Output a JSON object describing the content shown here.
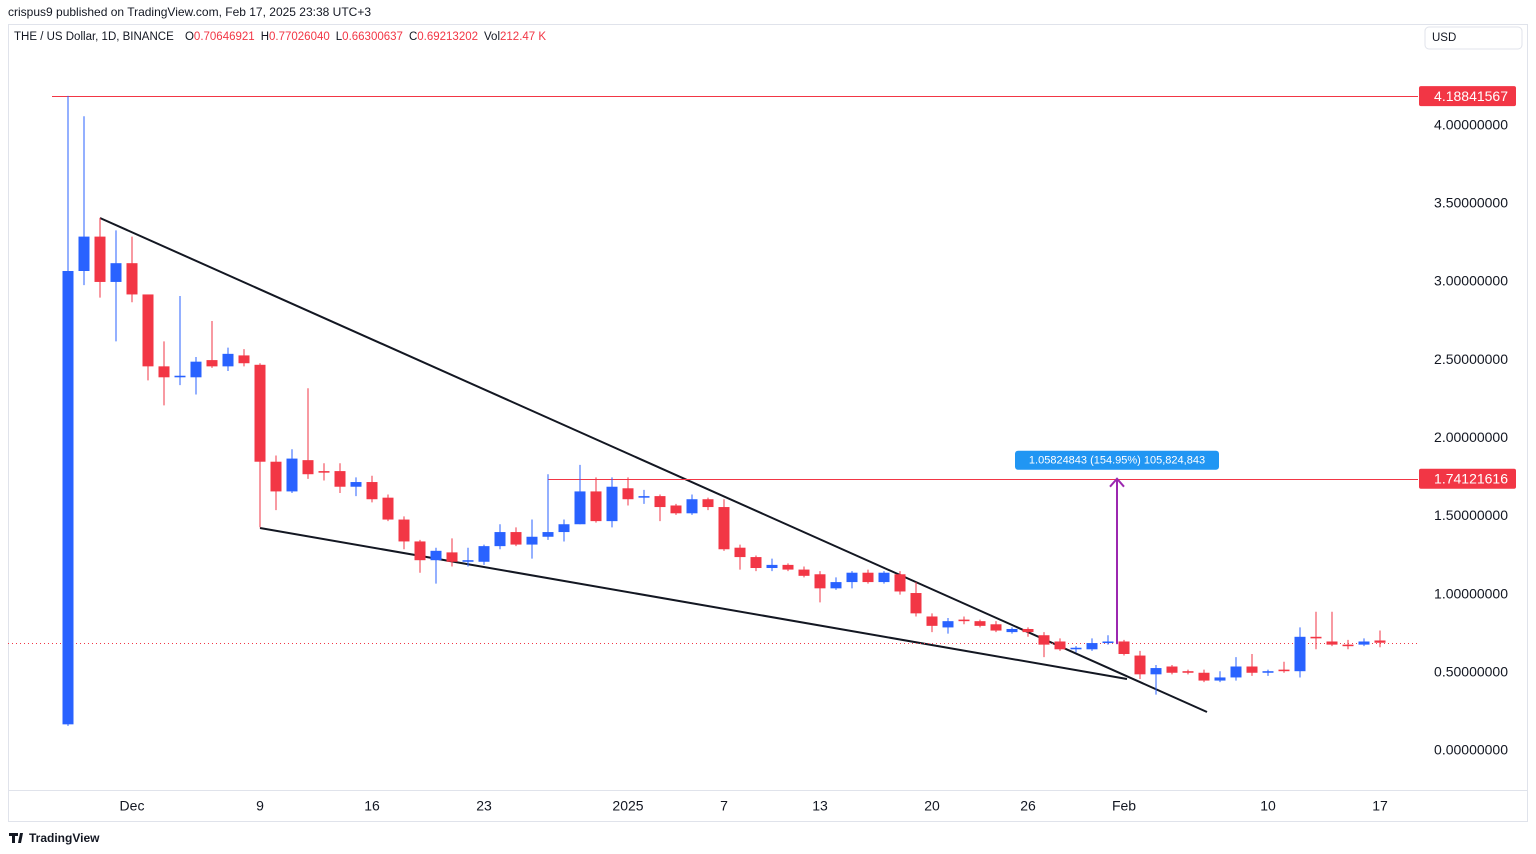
{
  "watermark": "crispus9 published on TradingView.com, Feb 17, 2025 23:38 UTC+3",
  "currency": "USD",
  "footer": "TradingView",
  "legend": {
    "symbol": "THE / US Dollar, 1D, BINANCE",
    "items": [
      {
        "key": "O",
        "text": "0.70646921"
      },
      {
        "key": "H",
        "text": "0.77026040"
      },
      {
        "key": "L",
        "text": "0.66300637"
      },
      {
        "key": "C",
        "text": "0.69213202"
      },
      {
        "key": "Vol",
        "text": "212.47 K"
      }
    ]
  },
  "chart_data": {
    "type": "candlestick",
    "up_color": "#2962ff",
    "down_color": "#f23645",
    "categories": [
      null,
      null,
      null,
      null,
      "Dec",
      null,
      null,
      null,
      null,
      null,
      null,
      null,
      "9",
      null,
      null,
      null,
      null,
      null,
      null,
      "16",
      null,
      null,
      null,
      null,
      null,
      null,
      "23",
      null,
      null,
      null,
      null,
      null,
      null,
      null,
      null,
      "2025",
      null,
      null,
      null,
      null,
      null,
      "7",
      null,
      null,
      null,
      null,
      null,
      "13",
      null,
      null,
      null,
      null,
      null,
      null,
      "20",
      null,
      null,
      null,
      null,
      null,
      "26",
      null,
      null,
      null,
      null,
      null,
      "Feb",
      null,
      null,
      null,
      null,
      null,
      null,
      null,
      null,
      "10",
      null,
      null,
      null,
      null,
      null,
      null,
      "17"
    ],
    "open": [
      0.17,
      3.07,
      3.29,
      3.0,
      3.12,
      2.92,
      2.46,
      2.39,
      2.39,
      2.5,
      2.46,
      2.53,
      2.47,
      1.85,
      1.66,
      1.86,
      1.79,
      1.79,
      1.69,
      1.72,
      1.62,
      1.48,
      1.34,
      1.22,
      1.27,
      1.21,
      1.21,
      1.31,
      1.4,
      1.32,
      1.37,
      1.4,
      1.45,
      1.66,
      1.47,
      1.68,
      1.62,
      1.63,
      1.57,
      1.52,
      1.61,
      1.56,
      1.3,
      1.24,
      1.17,
      1.19,
      1.16,
      1.13,
      1.04,
      1.08,
      1.14,
      1.08,
      1.13,
      1.01,
      0.86,
      0.79,
      0.84,
      0.83,
      0.81,
      0.76,
      0.78,
      0.74,
      0.7,
      0.65,
      0.65,
      0.69,
      0.7,
      0.61,
      0.49,
      0.54,
      0.51,
      0.5,
      0.45,
      0.47,
      0.54,
      0.5,
      0.52,
      0.51,
      0.73,
      0.7,
      0.68,
      0.68,
      0.70646921
    ],
    "high": [
      4.19,
      4.06,
      3.41,
      3.33,
      3.29,
      2.92,
      2.62,
      2.91,
      2.52,
      2.75,
      2.58,
      2.57,
      2.48,
      1.89,
      1.93,
      2.32,
      1.84,
      1.84,
      1.75,
      1.76,
      1.64,
      1.5,
      1.35,
      1.3,
      1.36,
      1.3,
      1.32,
      1.45,
      1.43,
      1.48,
      1.77,
      1.48,
      1.83,
      1.75,
      1.75,
      1.75,
      1.67,
      1.64,
      1.58,
      1.64,
      1.62,
      1.61,
      1.32,
      1.25,
      1.23,
      1.2,
      1.18,
      1.15,
      1.11,
      1.15,
      1.16,
      1.15,
      1.15,
      1.08,
      0.88,
      0.85,
      0.86,
      0.84,
      0.83,
      0.79,
      0.79,
      0.76,
      0.72,
      0.67,
      0.72,
      0.74,
      0.71,
      0.64,
      0.55,
      0.55,
      0.52,
      0.52,
      0.51,
      0.6,
      0.62,
      0.52,
      0.57,
      0.79,
      0.89,
      0.89,
      0.71,
      0.72,
      0.7702604
    ],
    "low": [
      0.16,
      2.98,
      2.9,
      2.62,
      2.87,
      2.37,
      2.21,
      2.34,
      2.28,
      2.45,
      2.43,
      2.46,
      1.43,
      1.54,
      1.65,
      1.74,
      1.73,
      1.65,
      1.63,
      1.59,
      1.47,
      1.29,
      1.14,
      1.07,
      1.18,
      1.18,
      1.19,
      1.29,
      1.31,
      1.23,
      1.35,
      1.34,
      1.45,
      1.46,
      1.43,
      1.57,
      1.58,
      1.47,
      1.51,
      1.51,
      1.54,
      1.28,
      1.16,
      1.15,
      1.15,
      1.15,
      1.11,
      0.95,
      1.03,
      1.04,
      1.07,
      1.07,
      1.0,
      0.86,
      0.76,
      0.75,
      0.81,
      0.79,
      0.76,
      0.75,
      0.73,
      0.6,
      0.64,
      0.63,
      0.64,
      0.68,
      0.61,
      0.46,
      0.36,
      0.49,
      0.49,
      0.44,
      0.44,
      0.45,
      0.48,
      0.48,
      0.5,
      0.47,
      0.65,
      0.67,
      0.65,
      0.67,
      0.66300637
    ],
    "close": [
      3.07,
      3.29,
      3.0,
      3.12,
      2.92,
      2.46,
      2.39,
      2.4,
      2.49,
      2.46,
      2.54,
      2.48,
      1.85,
      1.66,
      1.87,
      1.77,
      1.78,
      1.69,
      1.72,
      1.61,
      1.48,
      1.34,
      1.22,
      1.28,
      1.21,
      1.22,
      1.31,
      1.4,
      1.32,
      1.37,
      1.4,
      1.45,
      1.66,
      1.47,
      1.69,
      1.61,
      1.63,
      1.56,
      1.52,
      1.61,
      1.56,
      1.29,
      1.24,
      1.17,
      1.19,
      1.16,
      1.12,
      1.04,
      1.08,
      1.14,
      1.08,
      1.14,
      1.02,
      0.88,
      0.8,
      0.83,
      0.83,
      0.8,
      0.77,
      0.78,
      0.76,
      0.68,
      0.65,
      0.66,
      0.69,
      0.7,
      0.62,
      0.49,
      0.53,
      0.5,
      0.5,
      0.45,
      0.47,
      0.54,
      0.5,
      0.51,
      0.51,
      0.73,
      0.72,
      0.68,
      0.67,
      0.7,
      0.69213202
    ],
    "ylim": [
      -0.25,
      4.65
    ],
    "yticks": [
      {
        "value": 0,
        "label": "0.00000000"
      },
      {
        "value": 0.5,
        "label": "0.50000000"
      },
      {
        "value": 1,
        "label": "1.00000000"
      },
      {
        "value": 1.5,
        "label": "1.50000000"
      },
      {
        "value": 2,
        "label": "2.00000000"
      },
      {
        "value": 2.5,
        "label": "2.50000000"
      },
      {
        "value": 3,
        "label": "3.00000000"
      },
      {
        "value": 3.5,
        "label": "3.50000000"
      },
      {
        "value": 4,
        "label": "4.00000000"
      }
    ],
    "levels": [
      {
        "value": 4.18841567,
        "color": "#f23645"
      },
      {
        "value": 1.74121616,
        "color": "#f23645"
      }
    ],
    "last_price_line": true,
    "measure": {
      "from": 0.68296773,
      "to": 1.74121616,
      "label": "1.05824843 (154.95%) 105,824,843",
      "color": "#9c27b0",
      "label_color": "#2196f3"
    }
  }
}
